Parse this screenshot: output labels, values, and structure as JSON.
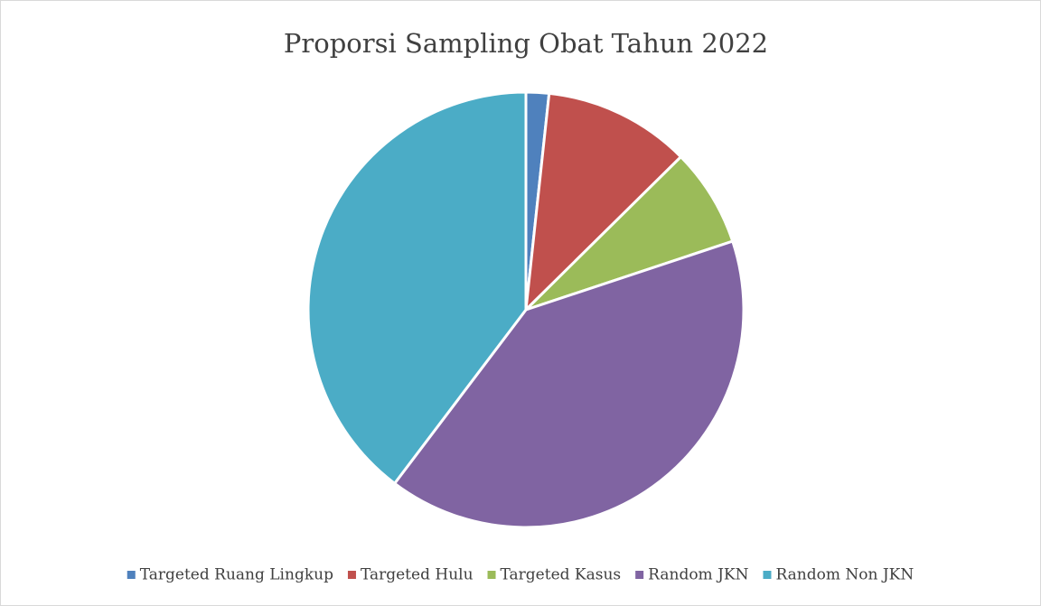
{
  "chart_data": {
    "type": "pie",
    "title": "Proporsi Sampling Obat Tahun 2022",
    "categories": [
      "Targeted Ruang Lingkup",
      "Targeted Hulu",
      "Targeted Kasus",
      "Random JKN",
      "Random Non JKN"
    ],
    "values": [
      1.7,
      10.9,
      7.3,
      40.4,
      39.7
    ],
    "colors": [
      "#4f81bd",
      "#c0504d",
      "#9bbb59",
      "#8064a2",
      "#4bacc6"
    ],
    "legend": "bottom"
  }
}
